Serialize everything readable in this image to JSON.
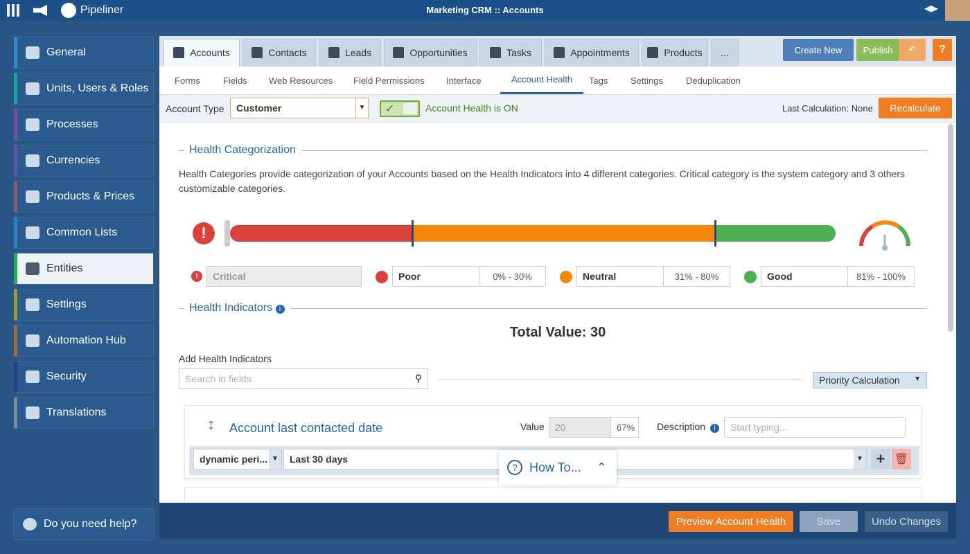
{
  "topbar": {
    "brand": "Pipeliner",
    "title": "Marketing CRM :: Accounts"
  },
  "sidebar": {
    "items": [
      "General",
      "Units, Users & Roles",
      "Processes",
      "Currencies",
      "Products & Prices",
      "Common Lists",
      "Entities",
      "Settings",
      "Automation Hub",
      "Security",
      "Translations"
    ],
    "help": "Do you need help?"
  },
  "tabs": [
    "Accounts",
    "Contacts",
    "Leads",
    "Opportunities",
    "Tasks",
    "Appointments",
    "Products",
    "..."
  ],
  "actions": {
    "create": "Create New",
    "publish": "Publish"
  },
  "subtabs": [
    "Forms",
    "Fields",
    "Web Resources",
    "Field Permissions",
    "Interface",
    "Account Health",
    "Tags",
    "Settings",
    "Deduplication"
  ],
  "toolbar": {
    "account_type_label": "Account Type",
    "account_type": "Customer",
    "status": "Account Health is ON",
    "last_calc": "Last Calculation: None",
    "recalculate": "Recalculate"
  },
  "categorization": {
    "title": "Health Categorization",
    "description": "Health Categories provide categorization of your Accounts based on the Health Indicators into 4 different categories. Critical category is the system category and 3 others customizable categories.",
    "categories": [
      {
        "name": "Critical"
      },
      {
        "name": "Poor",
        "range": "0% - 30%"
      },
      {
        "name": "Neutral",
        "range": "31% - 80%"
      },
      {
        "name": "Good",
        "range": "81% - 100%"
      }
    ]
  },
  "indicators": {
    "title": "Health Indicators",
    "total": "Total Value: 30",
    "add_label": "Add Health Indicators",
    "search_placeholder": "Search in fields",
    "priority": "Priority Calculation",
    "items": [
      {
        "name": "Account last contacted date",
        "value_label": "Value",
        "value": "20",
        "percent": "67%",
        "description_label": "Description",
        "description_placeholder": "Start typing...",
        "period_type": "dynamic peri...",
        "period": "Last 30 days"
      }
    ]
  },
  "howto": "How To...",
  "footer": {
    "preview": "Preview Account Health",
    "save": "Save",
    "undo": "Undo Changes"
  }
}
